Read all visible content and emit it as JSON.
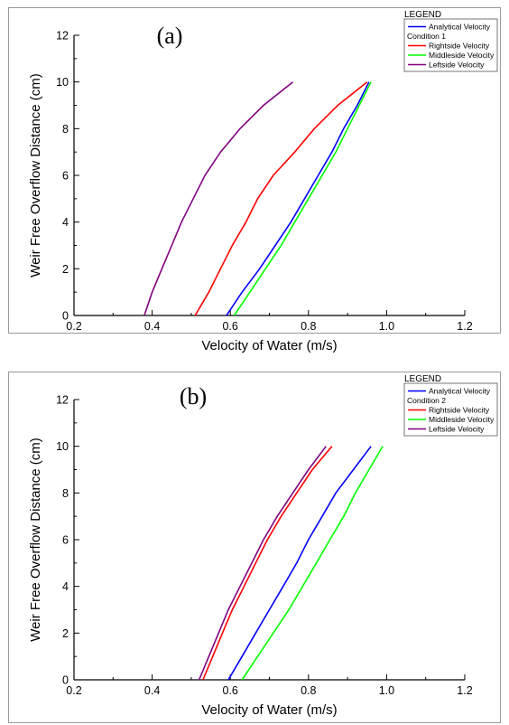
{
  "chart_data": [
    {
      "type": "line",
      "panel_label": "(a)",
      "xlabel": "Velocity of Water (m/s)",
      "ylabel": "Weir Free Overflow Distance (cm)",
      "xlim": [
        0.2,
        1.2
      ],
      "ylim": [
        0,
        12
      ],
      "xticks": [
        "0.2",
        "0.4",
        "0.6",
        "0.8",
        "1.0",
        "1.2"
      ],
      "yticks": [
        "0",
        "2",
        "4",
        "6",
        "8",
        "10",
        "12"
      ],
      "legend": {
        "title": "LEGEND",
        "condition": "Condition 1",
        "placement": "top-right"
      },
      "series": [
        {
          "name": "Analytical Velocity",
          "color": "#0000ff",
          "points": [
            [
              0.59,
              0
            ],
            [
              0.63,
              1
            ],
            [
              0.675,
              2
            ],
            [
              0.715,
              3
            ],
            [
              0.755,
              4
            ],
            [
              0.79,
              5
            ],
            [
              0.825,
              6
            ],
            [
              0.86,
              7
            ],
            [
              0.89,
              8
            ],
            [
              0.925,
              9
            ],
            [
              0.955,
              10
            ]
          ]
        },
        {
          "name": "Rightside Velocity",
          "color": "#ff0000",
          "points": [
            [
              0.51,
              0
            ],
            [
              0.545,
              1
            ],
            [
              0.575,
              2
            ],
            [
              0.605,
              3
            ],
            [
              0.64,
              4
            ],
            [
              0.67,
              5
            ],
            [
              0.71,
              6
            ],
            [
              0.765,
              7
            ],
            [
              0.815,
              8
            ],
            [
              0.875,
              9
            ],
            [
              0.95,
              10
            ]
          ]
        },
        {
          "name": "Middleside Velocity",
          "color": "#00ff00",
          "points": [
            [
              0.61,
              0
            ],
            [
              0.65,
              1
            ],
            [
              0.69,
              2
            ],
            [
              0.73,
              3
            ],
            [
              0.765,
              4
            ],
            [
              0.8,
              5
            ],
            [
              0.835,
              6
            ],
            [
              0.87,
              7
            ],
            [
              0.9,
              8
            ],
            [
              0.93,
              9
            ],
            [
              0.96,
              10
            ]
          ]
        },
        {
          "name": "Leftside Velocity",
          "color": "#800080",
          "points": [
            [
              0.38,
              0
            ],
            [
              0.4,
              1
            ],
            [
              0.425,
              2
            ],
            [
              0.45,
              3
            ],
            [
              0.475,
              4
            ],
            [
              0.505,
              5
            ],
            [
              0.535,
              6
            ],
            [
              0.575,
              7
            ],
            [
              0.625,
              8
            ],
            [
              0.685,
              9
            ],
            [
              0.76,
              10
            ]
          ]
        }
      ]
    },
    {
      "type": "line",
      "panel_label": "(b)",
      "xlabel": "Velocity of Water (m/s)",
      "ylabel": "Weir Free Overflow Distance (cm)",
      "xlim": [
        0.2,
        1.2
      ],
      "ylim": [
        0,
        12
      ],
      "xticks": [
        "0.2",
        "0.4",
        "0.6",
        "0.8",
        "1.0",
        "1.2"
      ],
      "yticks": [
        "0",
        "2",
        "4",
        "6",
        "8",
        "10",
        "12"
      ],
      "legend": {
        "title": "LEGEND",
        "condition": "Condition 2",
        "placement": "top-right"
      },
      "series": [
        {
          "name": "Analytical Velocity",
          "color": "#0000ff",
          "points": [
            [
              0.595,
              0
            ],
            [
              0.63,
              1
            ],
            [
              0.665,
              2
            ],
            [
              0.7,
              3
            ],
            [
              0.735,
              4
            ],
            [
              0.77,
              5
            ],
            [
              0.8,
              6
            ],
            [
              0.835,
              7
            ],
            [
              0.87,
              8
            ],
            [
              0.915,
              9
            ],
            [
              0.96,
              10
            ]
          ]
        },
        {
          "name": "Rightside Velocity",
          "color": "#ff0000",
          "points": [
            [
              0.53,
              0
            ],
            [
              0.555,
              1
            ],
            [
              0.58,
              2
            ],
            [
              0.605,
              3
            ],
            [
              0.635,
              4
            ],
            [
              0.665,
              5
            ],
            [
              0.695,
              6
            ],
            [
              0.73,
              7
            ],
            [
              0.77,
              8
            ],
            [
              0.81,
              9
            ],
            [
              0.86,
              10
            ]
          ]
        },
        {
          "name": "Middleside Velocity",
          "color": "#00ff00",
          "points": [
            [
              0.63,
              0
            ],
            [
              0.67,
              1
            ],
            [
              0.71,
              2
            ],
            [
              0.75,
              3
            ],
            [
              0.785,
              4
            ],
            [
              0.82,
              5
            ],
            [
              0.855,
              6
            ],
            [
              0.89,
              7
            ],
            [
              0.92,
              8
            ],
            [
              0.955,
              9
            ],
            [
              0.99,
              10
            ]
          ]
        },
        {
          "name": "Leftside Velocity",
          "color": "#800080",
          "points": [
            [
              0.52,
              0
            ],
            [
              0.545,
              1
            ],
            [
              0.57,
              2
            ],
            [
              0.595,
              3
            ],
            [
              0.625,
              4
            ],
            [
              0.655,
              5
            ],
            [
              0.685,
              6
            ],
            [
              0.72,
              7
            ],
            [
              0.76,
              8
            ],
            [
              0.8,
              9
            ],
            [
              0.845,
              10
            ]
          ]
        }
      ]
    }
  ]
}
